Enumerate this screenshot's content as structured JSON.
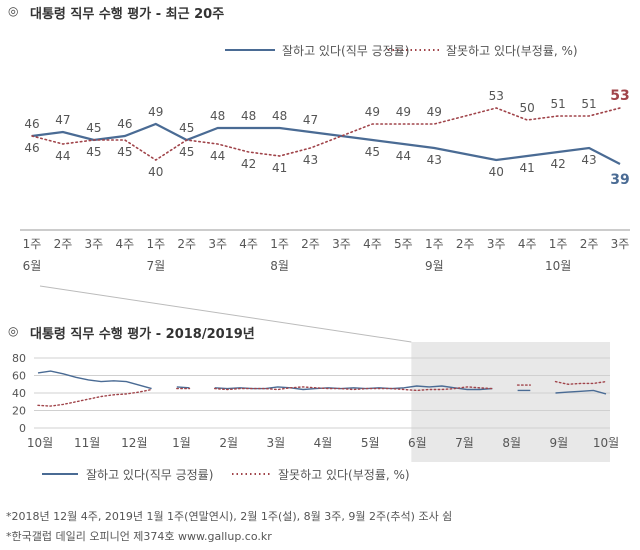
{
  "top": {
    "bullet": "◎",
    "title": "대통령 직무 수행 평가 - 최근 20주",
    "legend_approve": "잘하고 있다(직무 긍정률)",
    "legend_disapprove": "잘못하고 있다(부정률, %)"
  },
  "bottom": {
    "bullet": "◎",
    "title": "대통령 직무 수행 평가 - 2018/2019년",
    "legend_approve": "잘하고 있다(직무 긍정률)",
    "legend_disapprove": "잘못하고 있다(부정률, %)"
  },
  "notes": {
    "line1": "*2018년 12월 4주, 2019년 1월 1주(연말연시), 2월 1주(설), 8월 3주, 9월 2주(추석) 조사 쉼",
    "line2": "*한국갤럽 데일리 오피니언 제374호 www.gallup.co.kr"
  },
  "colors": {
    "approve": "#4a6b94",
    "disapprove": "#a0444a",
    "highlight": "#e8e8e8",
    "axis": "#aaaaaa"
  },
  "chart_data": [
    {
      "type": "line",
      "title": "대통령 직무 수행 평가 - 최근 20주",
      "categories": [
        "1주",
        "2주",
        "3주",
        "4주",
        "1주",
        "2주",
        "3주",
        "4주",
        "1주",
        "2주",
        "3주",
        "4주",
        "5주",
        "1주",
        "2주",
        "3주",
        "4주",
        "1주",
        "2주",
        "3주"
      ],
      "month_labels": [
        {
          "index": 0,
          "label": "6월"
        },
        {
          "index": 4,
          "label": "7월"
        },
        {
          "index": 8,
          "label": "8월"
        },
        {
          "index": 13,
          "label": "9월"
        },
        {
          "index": 17,
          "label": "10월"
        }
      ],
      "series": [
        {
          "name": "잘하고 있다(직무 긍정률)",
          "style": "solid",
          "color": "#4a6b94",
          "values": [
            46,
            47,
            45,
            46,
            49,
            45,
            48,
            48,
            48,
            47,
            null,
            45,
            44,
            43,
            null,
            40,
            41,
            42,
            43,
            39
          ]
        },
        {
          "name": "잘못하고 있다(부정률, %)",
          "style": "dotted",
          "color": "#a0444a",
          "values": [
            46,
            44,
            45,
            45,
            40,
            45,
            44,
            42,
            41,
            43,
            null,
            49,
            49,
            49,
            null,
            53,
            50,
            51,
            51,
            53
          ]
        }
      ],
      "ylim": [
        30,
        60
      ]
    },
    {
      "type": "line",
      "title": "대통령 직무 수행 평가 - 2018/2019년",
      "y_ticks": [
        0,
        20,
        40,
        60,
        80
      ],
      "ylim": [
        0,
        80
      ],
      "x_labels": [
        "10월",
        "11월",
        "12월",
        "1월",
        "2월",
        "3월",
        "4월",
        "5월",
        "6월",
        "7월",
        "8월",
        "9월",
        "10월"
      ],
      "highlight_from": "6월",
      "series": [
        {
          "name": "잘하고 있다(직무 긍정률)",
          "style": "solid",
          "color": "#4a6b94",
          "values": [
            63,
            65,
            62,
            58,
            55,
            53,
            54,
            53,
            49,
            45,
            null,
            47,
            46,
            null,
            46,
            45,
            46,
            45,
            45,
            47,
            46,
            44,
            45,
            46,
            45,
            46,
            45,
            46,
            45,
            46,
            48,
            47,
            48,
            46,
            44,
            44,
            45,
            null,
            43,
            43,
            null,
            40,
            41,
            42,
            43,
            39
          ]
        },
        {
          "name": "잘못하고 있다(부정률, %)",
          "style": "dotted",
          "color": "#a0444a",
          "values": [
            26,
            25,
            27,
            30,
            33,
            36,
            38,
            39,
            41,
            44,
            null,
            45,
            45,
            null,
            45,
            44,
            45,
            45,
            45,
            44,
            46,
            47,
            46,
            45,
            45,
            44,
            45,
            45,
            45,
            44,
            43,
            44,
            44,
            45,
            47,
            46,
            45,
            null,
            49,
            49,
            null,
            53,
            50,
            51,
            51,
            53
          ]
        }
      ]
    }
  ]
}
